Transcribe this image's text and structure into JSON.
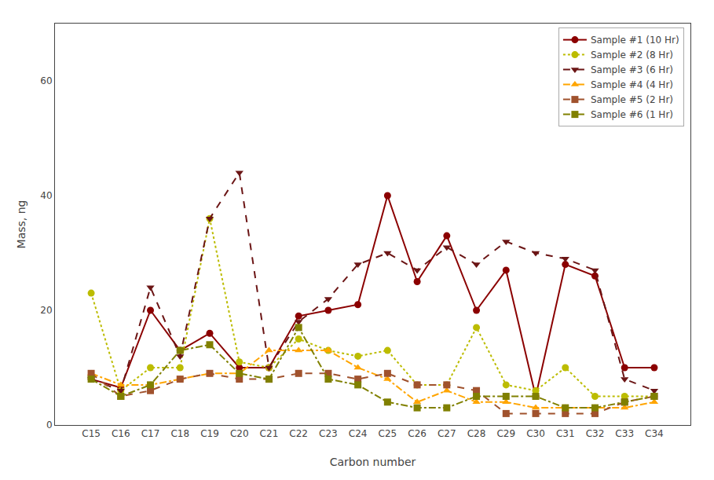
{
  "chart_data": {
    "type": "line",
    "x_label": "Carbon number",
    "y_label": "Mass, ng",
    "categories": [
      "C15",
      "C16",
      "C17",
      "C18",
      "C19",
      "C20",
      "C21",
      "C22",
      "C23",
      "C24",
      "C25",
      "C26",
      "C27",
      "C28",
      "C29",
      "C30",
      "C31",
      "C32",
      "C33",
      "C34"
    ],
    "series": [
      {
        "name": "Sample #1 (10 Hr)",
        "color": "#8B0000",
        "marker": "circle",
        "line_style": "solid",
        "values": [
          8.0,
          6.5,
          20.0,
          13.0,
          16.0,
          10.0,
          10.0,
          19.0,
          20.0,
          21.0,
          40.0,
          25.0,
          33.0,
          20.0,
          27.0,
          5.0,
          28.0,
          26.0,
          10.0,
          10.0
        ]
      },
      {
        "name": "Sample #2 (8 Hr)",
        "color": "#BCBC00",
        "marker": "circle",
        "line_style": "dotted",
        "values": [
          23.0,
          6.0,
          10.0,
          10.0,
          36.0,
          11.0,
          10.0,
          15.0,
          13.0,
          12.0,
          13.0,
          7.0,
          7.0,
          17.0,
          7.0,
          6.0,
          10.0,
          5.0,
          5.0,
          5.0
        ]
      },
      {
        "name": "Sample #3 (6 Hr)",
        "color": "#6B1515",
        "marker": "triangle-down",
        "line_style": "dashed",
        "values": [
          8.0,
          6.0,
          24.0,
          12.0,
          36.0,
          44.0,
          10.0,
          18.0,
          22.0,
          28.0,
          30.0,
          27.0,
          31.0,
          28.0,
          32.0,
          30.0,
          29.0,
          27.0,
          8.0,
          6.0
        ]
      },
      {
        "name": "Sample #4 (4 Hr)",
        "color": "#FFA500",
        "marker": "triangle-up",
        "line_style": "dashdot",
        "values": [
          9.0,
          7.0,
          7.0,
          8.0,
          9.0,
          9.0,
          13.0,
          13.0,
          13.0,
          10.0,
          8.0,
          4.0,
          6.0,
          4.0,
          4.0,
          3.0,
          3.0,
          3.0,
          3.0,
          4.0
        ]
      },
      {
        "name": "Sample #5 (2 Hr)",
        "color": "#A0522D",
        "marker": "square",
        "line_style": "dashed",
        "values": [
          9.0,
          5.0,
          6.0,
          8.0,
          9.0,
          8.0,
          8.0,
          9.0,
          9.0,
          8.0,
          9.0,
          7.0,
          7.0,
          6.0,
          2.0,
          2.0,
          2.0,
          2.0,
          4.0,
          5.0
        ]
      },
      {
        "name": "Sample #6 (1 Hr)",
        "color": "#808000",
        "marker": "square",
        "line_style": "dashdot",
        "values": [
          8.0,
          5.0,
          7.0,
          13.0,
          14.0,
          9.0,
          8.0,
          17.0,
          8.0,
          7.0,
          4.0,
          3.0,
          3.0,
          5.0,
          5.0,
          5.0,
          3.0,
          3.0,
          4.0,
          5.0
        ]
      }
    ],
    "ylim": [
      0,
      70
    ],
    "yticks": [
      0,
      20,
      40,
      60
    ],
    "grid": false,
    "legend": "upper right"
  }
}
